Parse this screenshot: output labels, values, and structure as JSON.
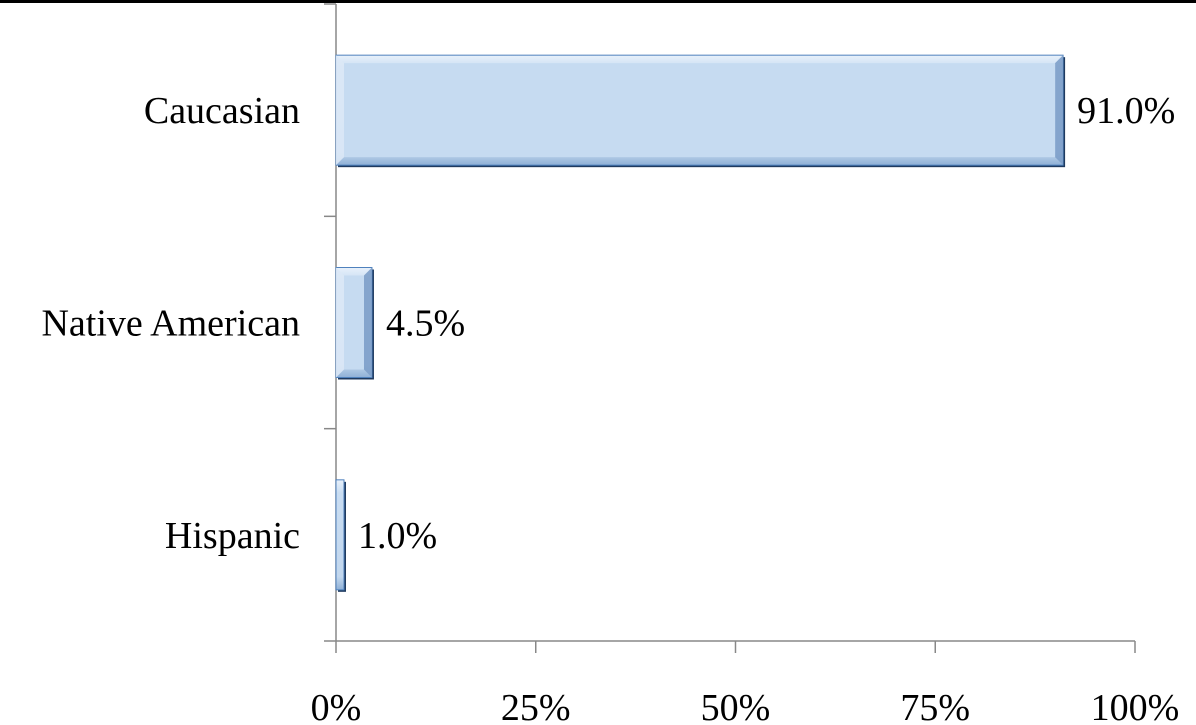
{
  "chart_data": {
    "type": "bar",
    "orientation": "horizontal",
    "title": "",
    "xlabel": "",
    "ylabel": "",
    "categories": [
      "Caucasian",
      "Native American",
      "Hispanic"
    ],
    "values": [
      91.0,
      4.5,
      1.0
    ],
    "value_labels": [
      "91.0%",
      "4.5%",
      "1.0%"
    ],
    "xlim": [
      0,
      100
    ],
    "x_ticks": [
      0,
      25,
      50,
      75,
      100
    ],
    "x_tick_labels": [
      "0%",
      "25%",
      "50%",
      "75%",
      "100%"
    ],
    "grid": false,
    "legend": "none",
    "colors": {
      "bar_fill": "#c6dbf1",
      "bar_edge": "#4f81bd",
      "bar_shadow": "#1f3a5f",
      "axis": "#888888"
    }
  }
}
